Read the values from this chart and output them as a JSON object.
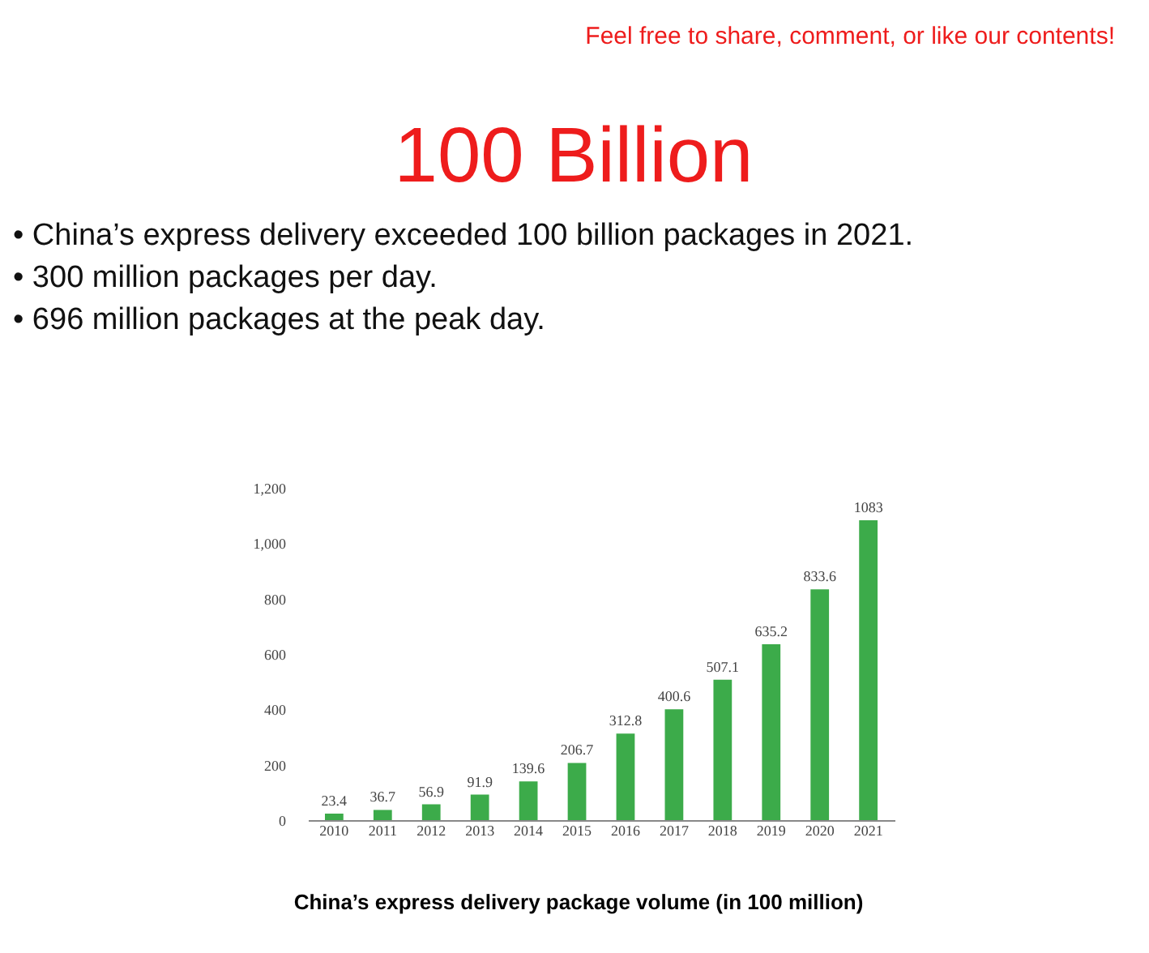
{
  "chart_data": {
    "type": "bar",
    "title": "100 Billion",
    "annotations": [
      "Feel free to share, comment, or like our contents!",
      "•   China’s express delivery exceeded 100 billion packages in 2021.",
      "•   300 million packages per day.",
      "•   696 million packages at the peak day.",
      "China’s express delivery package volume (in 100 million)"
    ],
    "categories": [
      "2010",
      "2011",
      "2012",
      "2013",
      "2014",
      "2015",
      "2016",
      "2017",
      "2018",
      "2019",
      "2020",
      "2021"
    ],
    "values": [
      23.4,
      36.7,
      56.9,
      91.9,
      139.6,
      206.7,
      312.8,
      400.6,
      507.1,
      635.2,
      833.6,
      1083
    ],
    "color": "#3cab4a",
    "data_labels": true,
    "grid": false,
    "ylim": [
      0,
      1200
    ],
    "yticks": [
      0,
      200,
      400,
      600,
      800,
      {
        "value": 1000,
        "label": "1,000"
      },
      {
        "value": 1200,
        "label": "1,200"
      }
    ]
  }
}
